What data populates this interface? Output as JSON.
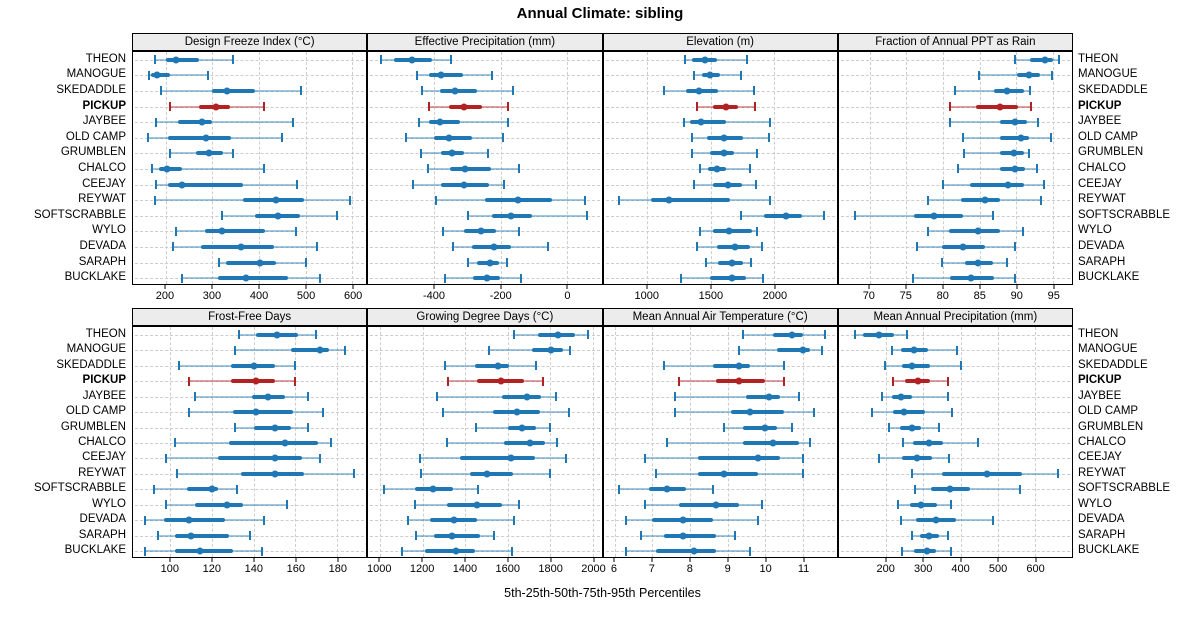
{
  "title": "Annual Climate: sibling",
  "axis_caption": "5th-25th-50th-75th-95th Percentiles",
  "sites": [
    "THEON",
    "MANOGUE",
    "SKEDADDLE",
    "PICKUP",
    "JAYBEE",
    "OLD CAMP",
    "GRUMBLEN",
    "CHALCO",
    "CEEJAY",
    "REYWAT",
    "SOFTSCRABBLE",
    "WYLO",
    "DEVADA",
    "SARAPH",
    "BUCKLAKE"
  ],
  "highlight_site": "PICKUP",
  "percentile_levels": [
    5,
    25,
    50,
    75,
    95
  ],
  "colors": {
    "series": "#1f77b4",
    "highlight": "#b22222",
    "strip_bg": "#ececec",
    "grid": "#cdcdcd",
    "border": "#000000"
  },
  "chart_data": [
    {
      "type": "scatter",
      "style": "dot-whisker",
      "panel": "Design Freeze Index (°C)",
      "grid": "dashed",
      "legend": "none",
      "xlim": [
        130,
        630
      ],
      "ticks": [
        200,
        300,
        400,
        500,
        600
      ],
      "values": [
        [
          178,
          200,
          223,
          272,
          344
        ],
        [
          164,
          168,
          181,
          209,
          290
        ],
        [
          190,
          300,
          331,
          391,
          491
        ],
        [
          210,
          272,
          308,
          338,
          410
        ],
        [
          180,
          227,
          278,
          300,
          473
        ],
        [
          162,
          206,
          287,
          341,
          450
        ],
        [
          209,
          264,
          292,
          324,
          344
        ],
        [
          171,
          185,
          202,
          234,
          410
        ],
        [
          180,
          206,
          234,
          365,
          482
        ],
        [
          178,
          366,
          436,
          496,
          596
        ],
        [
          321,
          392,
          440,
          489,
          567
        ],
        [
          222,
          285,
          321,
          413,
          480
        ],
        [
          215,
          276,
          362,
          433,
          524
        ],
        [
          315,
          329,
          403,
          436,
          501
        ],
        [
          234,
          313,
          373,
          462,
          531
        ]
      ]
    },
    {
      "type": "scatter",
      "style": "dot-whisker",
      "panel": "Effective Precipitation (mm)",
      "grid": "dashed",
      "legend": "none",
      "xlim": [
        -600,
        105
      ],
      "ticks": [
        -400,
        -200,
        0
      ],
      "values": [
        [
          -560,
          -522,
          -467,
          -407,
          -350
        ],
        [
          -454,
          -417,
          -380,
          -315,
          -227
        ],
        [
          -437,
          -384,
          -337,
          -272,
          -162
        ],
        [
          -417,
          -357,
          -312,
          -257,
          -177
        ],
        [
          -447,
          -417,
          -384,
          -322,
          -177
        ],
        [
          -487,
          -402,
          -357,
          -287,
          -194
        ],
        [
          -440,
          -380,
          -347,
          -312,
          -237
        ],
        [
          -419,
          -354,
          -307,
          -230,
          -144
        ],
        [
          -464,
          -380,
          -310,
          -234,
          -189
        ],
        [
          -394,
          -247,
          -147,
          -44,
          56
        ],
        [
          -297,
          -227,
          -170,
          -105,
          61
        ],
        [
          -374,
          -312,
          -260,
          -214,
          -144
        ],
        [
          -344,
          -287,
          -219,
          -167,
          -57
        ],
        [
          -299,
          -272,
          -232,
          -204,
          -182
        ],
        [
          -369,
          -284,
          -240,
          -202,
          -139
        ]
      ]
    },
    {
      "type": "scatter",
      "style": "dot-whisker",
      "panel": "Elevation (m)",
      "grid": "dashed",
      "legend": "none",
      "xlim": [
        655,
        2490
      ],
      "ticks": [
        1000,
        1500,
        2000
      ],
      "values": [
        [
          1299,
          1351,
          1455,
          1546,
          1780
        ],
        [
          1369,
          1429,
          1489,
          1572,
          1736
        ],
        [
          1130,
          1307,
          1403,
          1554,
          1837
        ],
        [
          1390,
          1520,
          1619,
          1715,
          1850
        ],
        [
          1286,
          1333,
          1424,
          1619,
          1962
        ],
        [
          1351,
          1468,
          1606,
          1754,
          1957
        ],
        [
          1351,
          1489,
          1603,
          1684,
          1866
        ],
        [
          1411,
          1476,
          1546,
          1619,
          1806
        ],
        [
          1369,
          1520,
          1637,
          1741,
          1858
        ],
        [
          774,
          1026,
          1169,
          1650,
          1962
        ],
        [
          1736,
          1918,
          2092,
          2217,
          2391
        ],
        [
          1411,
          1520,
          1645,
          1827,
          1866
        ],
        [
          1390,
          1546,
          1689,
          1811,
          1905
        ],
        [
          1463,
          1559,
          1668,
          1754,
          1814
        ],
        [
          1265,
          1494,
          1663,
          1780,
          1910
        ]
      ]
    },
    {
      "type": "scatter",
      "style": "dot-whisker",
      "panel": "Fraction of Annual PPT as Rain",
      "grid": "dashed",
      "legend": "none",
      "xlim": [
        65.8,
        97.6
      ],
      "ticks": [
        70,
        75,
        80,
        85,
        90,
        95
      ],
      "values": [
        [
          89.8,
          91.9,
          93.9,
          95.0,
          95.8
        ],
        [
          84.9,
          90.1,
          91.8,
          93.3,
          94.9
        ],
        [
          81.7,
          86.9,
          88.8,
          91.1,
          91.9
        ],
        [
          80.9,
          84.5,
          87.8,
          90.3,
          92.0
        ],
        [
          80.9,
          87.8,
          89.8,
          91.4,
          93.0
        ],
        [
          82.8,
          87.8,
          90.7,
          91.8,
          94.7
        ],
        [
          82.9,
          87.8,
          89.7,
          91.0,
          91.8
        ],
        [
          82.0,
          87.8,
          89.8,
          91.2,
          92.8
        ],
        [
          80.0,
          83.7,
          88.9,
          91.0,
          93.8
        ],
        [
          77.9,
          82.4,
          85.7,
          87.8,
          93.4
        ],
        [
          68.0,
          76.1,
          78.8,
          82.8,
          86.8
        ],
        [
          77.9,
          80.8,
          84.8,
          87.8,
          90.9
        ],
        [
          76.5,
          79.9,
          82.8,
          85.8,
          89.8
        ],
        [
          79.9,
          83.0,
          84.8,
          86.8,
          88.7
        ],
        [
          75.9,
          81.0,
          83.8,
          86.9,
          89.8
        ]
      ]
    },
    {
      "type": "scatter",
      "style": "dot-whisker",
      "panel": "Frost-Free Days",
      "grid": "dashed",
      "legend": "none",
      "xlim": [
        82,
        194
      ],
      "ticks": [
        100,
        120,
        140,
        160,
        180
      ],
      "values": [
        [
          133,
          141,
          151,
          161,
          170
        ],
        [
          131,
          158,
          172,
          176,
          184
        ],
        [
          104,
          129,
          140,
          150,
          160
        ],
        [
          109,
          129,
          141,
          150,
          160
        ],
        [
          112,
          139,
          147,
          155,
          166
        ],
        [
          109,
          130,
          141,
          159,
          173
        ],
        [
          131,
          140,
          150,
          158,
          166
        ],
        [
          102,
          128,
          155,
          171,
          177
        ],
        [
          98,
          123,
          150,
          163,
          172
        ],
        [
          103,
          134,
          150,
          164,
          188
        ],
        [
          92,
          108,
          120,
          123,
          132
        ],
        [
          98,
          112,
          127,
          135,
          156
        ],
        [
          88,
          97,
          109,
          126,
          145
        ],
        [
          94,
          102,
          110,
          128,
          138
        ],
        [
          88,
          102,
          114,
          130,
          144
        ]
      ]
    },
    {
      "type": "scatter",
      "style": "dot-whisker",
      "panel": "Growing Degree Days (°C)",
      "grid": "dashed",
      "legend": "none",
      "xlim": [
        944,
        2042
      ],
      "ticks": [
        1000,
        1200,
        1400,
        1600,
        1800,
        2000
      ],
      "values": [
        [
          1628,
          1744,
          1835,
          1918,
          1977
        ],
        [
          1512,
          1716,
          1804,
          1860,
          1894
        ],
        [
          1305,
          1448,
          1553,
          1608,
          1732
        ],
        [
          1321,
          1457,
          1569,
          1677,
          1767
        ],
        [
          1267,
          1574,
          1693,
          1755,
          1829
        ],
        [
          1298,
          1530,
          1643,
          1752,
          1891
        ],
        [
          1450,
          1600,
          1670,
          1732,
          1801
        ],
        [
          1316,
          1584,
          1705,
          1775,
          1832
        ],
        [
          1189,
          1375,
          1615,
          1727,
          1876
        ],
        [
          1194,
          1425,
          1502,
          1626,
          1798
        ],
        [
          1016,
          1166,
          1248,
          1341,
          1460
        ],
        [
          1166,
          1316,
          1456,
          1573,
          1654
        ],
        [
          1130,
          1233,
          1349,
          1457,
          1628
        ],
        [
          1171,
          1254,
          1336,
          1468,
          1538
        ],
        [
          1101,
          1212,
          1357,
          1448,
          1623
        ]
      ]
    },
    {
      "type": "scatter",
      "style": "dot-whisker",
      "panel": "Mean Annual Air Temperature (°C)",
      "grid": "dashed",
      "legend": "none",
      "xlim": [
        5.7,
        11.9
      ],
      "ticks": [
        6,
        7,
        8,
        9,
        10,
        11
      ],
      "values": [
        [
          9.4,
          10.2,
          10.7,
          11.0,
          11.6
        ],
        [
          9.3,
          10.3,
          11.0,
          11.2,
          11.5
        ],
        [
          7.3,
          8.6,
          9.3,
          9.6,
          10.5
        ],
        [
          7.7,
          8.7,
          9.3,
          10.0,
          10.5
        ],
        [
          7.6,
          9.5,
          10.1,
          10.4,
          10.9
        ],
        [
          7.6,
          9.1,
          9.6,
          10.5,
          11.3
        ],
        [
          8.9,
          9.4,
          10.0,
          10.3,
          10.7
        ],
        [
          7.4,
          9.4,
          10.2,
          10.9,
          11.2
        ],
        [
          6.8,
          8.2,
          9.8,
          10.4,
          11.0
        ],
        [
          7.1,
          8.2,
          8.9,
          9.8,
          11.0
        ],
        [
          6.1,
          6.9,
          7.4,
          7.9,
          8.6
        ],
        [
          6.8,
          7.7,
          8.7,
          9.3,
          9.9
        ],
        [
          6.3,
          7.0,
          7.8,
          8.6,
          9.8
        ],
        [
          6.7,
          7.3,
          7.8,
          8.7,
          9.2
        ],
        [
          6.3,
          7.1,
          8.1,
          8.7,
          9.6
        ]
      ]
    },
    {
      "type": "scatter",
      "style": "dot-whisker",
      "panel": "Mean Annual Precipitation (mm)",
      "grid": "dashed",
      "legend": "none",
      "xlim": [
        72,
        700
      ],
      "ticks": [
        200,
        300,
        400,
        500,
        600
      ],
      "values": [
        [
          115,
          138,
          180,
          222,
          256
        ],
        [
          215,
          240,
          275,
          312,
          391
        ],
        [
          197,
          241,
          270,
          319,
          400
        ],
        [
          219,
          250,
          285,
          319,
          367
        ],
        [
          189,
          215,
          240,
          270,
          367
        ],
        [
          162,
          218,
          248,
          303,
          378
        ],
        [
          208,
          237,
          270,
          294,
          343
        ],
        [
          246,
          272,
          316,
          354,
          448
        ],
        [
          180,
          241,
          283,
          322,
          369
        ],
        [
          268,
          350,
          471,
          566,
          663
        ],
        [
          277,
          321,
          372,
          425,
          561
        ],
        [
          231,
          263,
          294,
          337,
          375
        ],
        [
          240,
          281,
          334,
          387,
          486
        ],
        [
          268,
          290,
          316,
          343,
          365
        ],
        [
          241,
          275,
          310,
          334,
          373
        ]
      ]
    }
  ]
}
